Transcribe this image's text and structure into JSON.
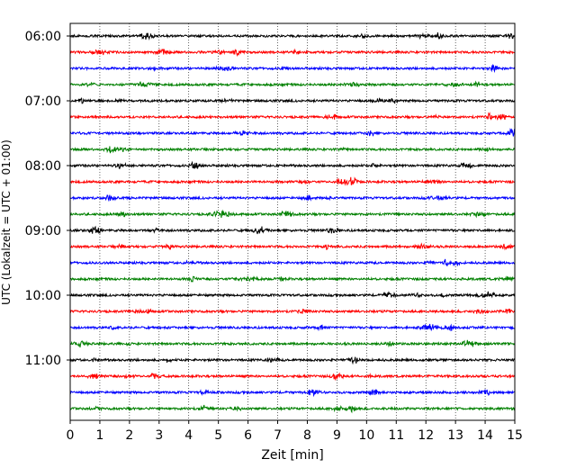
{
  "chart_data": {
    "type": "line",
    "title": "",
    "xlabel": "Zeit  [min]",
    "ylabel": "UTC (Lokalzeit = UTC + 01:00)",
    "xlim": [
      0,
      15
    ],
    "x_ticks": [
      "0",
      "1",
      "2",
      "3",
      "4",
      "5",
      "6",
      "7",
      "8",
      "9",
      "10",
      "11",
      "12",
      "13",
      "14",
      "15"
    ],
    "y_tick_labels": [
      "06:00",
      "07:00",
      "08:00",
      "09:00",
      "10:00",
      "11:00"
    ],
    "trace_interval_minutes": 15,
    "first_trace_start": "06:00",
    "grid": "vertical dotted lines at each minute",
    "legend": "none",
    "trace_colors": [
      "#000000",
      "#ff0000",
      "#0000ff",
      "#008000"
    ],
    "traces": [
      {
        "start": "06:00",
        "color": "#000000"
      },
      {
        "start": "06:15",
        "color": "#ff0000"
      },
      {
        "start": "06:30",
        "color": "#0000ff"
      },
      {
        "start": "06:45",
        "color": "#008000"
      },
      {
        "start": "07:00",
        "color": "#000000"
      },
      {
        "start": "07:15",
        "color": "#ff0000"
      },
      {
        "start": "07:30",
        "color": "#0000ff"
      },
      {
        "start": "07:45",
        "color": "#008000"
      },
      {
        "start": "08:00",
        "color": "#000000"
      },
      {
        "start": "08:15",
        "color": "#ff0000"
      },
      {
        "start": "08:30",
        "color": "#0000ff"
      },
      {
        "start": "08:45",
        "color": "#008000"
      },
      {
        "start": "09:00",
        "color": "#000000"
      },
      {
        "start": "09:15",
        "color": "#ff0000"
      },
      {
        "start": "09:30",
        "color": "#0000ff"
      },
      {
        "start": "09:45",
        "color": "#008000"
      },
      {
        "start": "10:00",
        "color": "#000000"
      },
      {
        "start": "10:15",
        "color": "#ff0000"
      },
      {
        "start": "10:30",
        "color": "#0000ff"
      },
      {
        "start": "10:45",
        "color": "#008000"
      },
      {
        "start": "11:00",
        "color": "#000000"
      },
      {
        "start": "11:15",
        "color": "#ff0000"
      },
      {
        "start": "11:30",
        "color": "#0000ff"
      },
      {
        "start": "11:45",
        "color": "#008000"
      }
    ]
  }
}
